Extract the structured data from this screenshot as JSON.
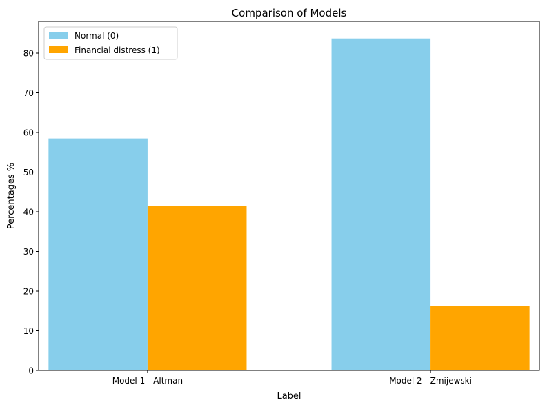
{
  "chart_data": {
    "type": "bar",
    "title": "Comparison of Models",
    "xlabel": "Label",
    "ylabel": "Percentages %",
    "categories": [
      "Model 1 - Altman",
      "Model 2 - Zmijewski"
    ],
    "series": [
      {
        "name": "Normal (0)",
        "color": "#87ceeb",
        "values": [
          58.5,
          83.7
        ]
      },
      {
        "name": "Financial distress (1)",
        "color": "#ffa500",
        "values": [
          41.5,
          16.3
        ]
      }
    ],
    "ylim": [
      0,
      88
    ],
    "yticks": [
      0,
      10,
      20,
      30,
      40,
      50,
      60,
      70,
      80
    ],
    "grid": false,
    "legend": "top-left"
  }
}
